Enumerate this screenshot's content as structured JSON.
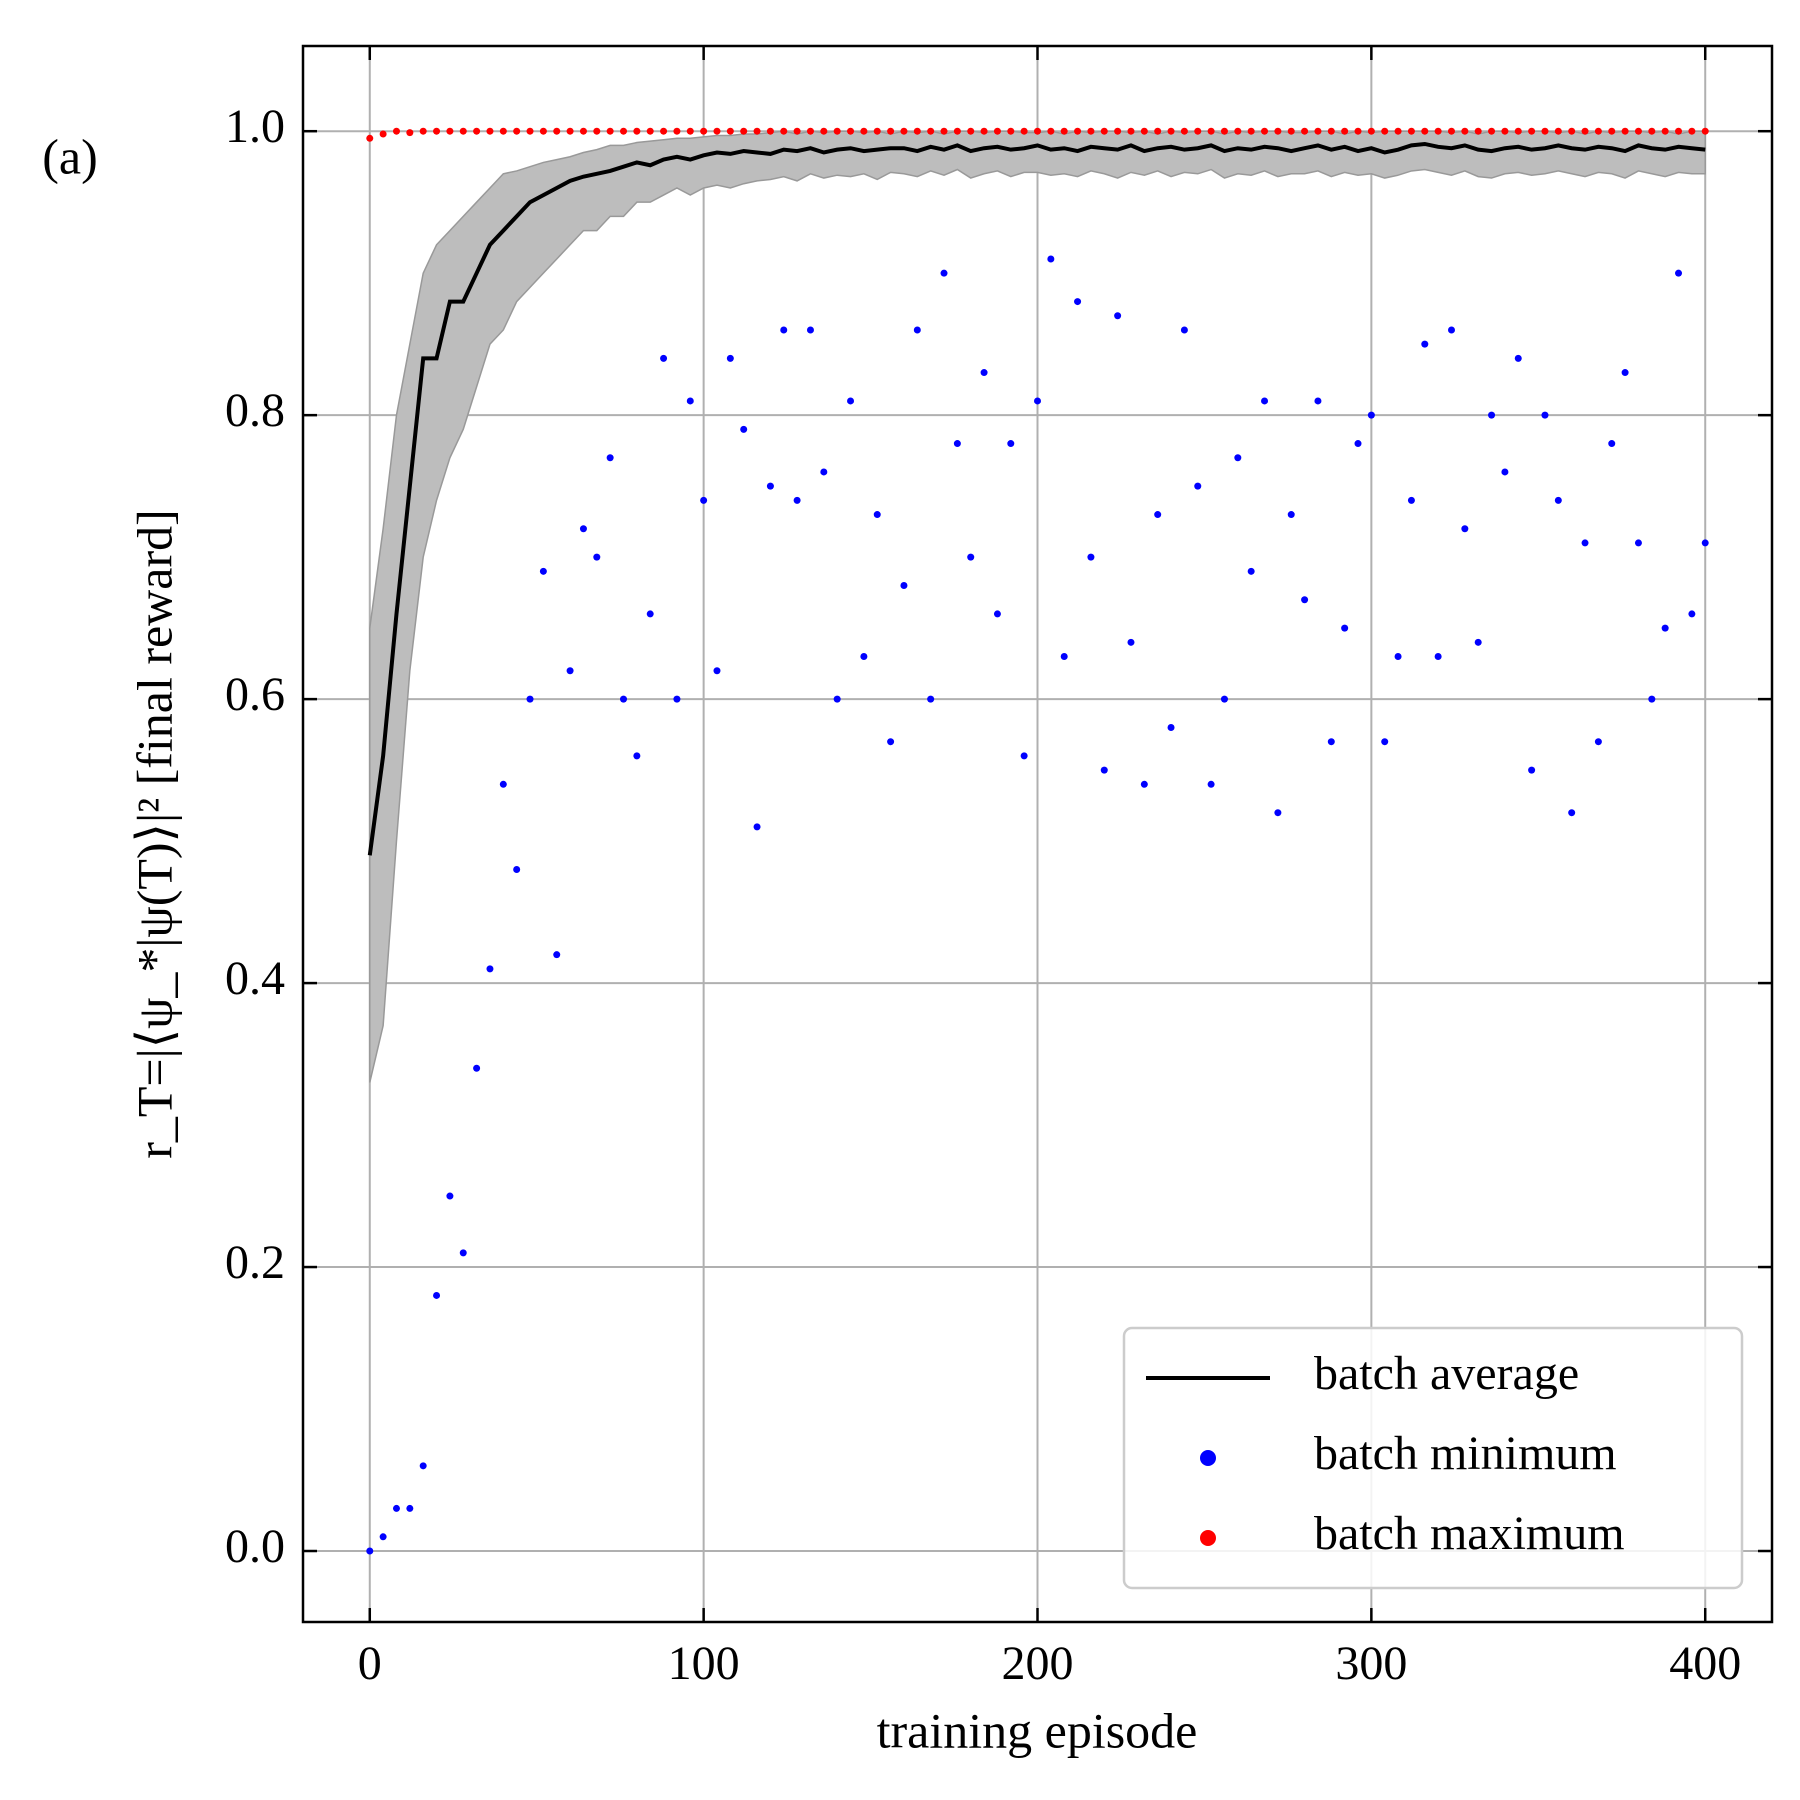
{
  "chart_data": {
    "type": "line",
    "panel_label": "(a)",
    "x_label": "training episode",
    "y_label": "r_T=|⟨ψ_*|ψ(T)⟩|² [final reward]",
    "xlim": [
      -20,
      420
    ],
    "ylim": [
      -0.05,
      1.06
    ],
    "xticks": [
      0,
      100,
      200,
      300,
      400
    ],
    "yticks": [
      {
        "value": 0,
        "label": "0.0"
      },
      0.2,
      0.4,
      0.6,
      0.8,
      {
        "value": 1,
        "label": "1.0"
      }
    ],
    "grid": true,
    "legend": "lower right",
    "x": [
      0,
      4,
      8,
      12,
      16,
      20,
      24,
      28,
      32,
      36,
      40,
      44,
      48,
      52,
      56,
      60,
      64,
      68,
      72,
      76,
      80,
      84,
      88,
      92,
      96,
      100,
      104,
      108,
      112,
      116,
      120,
      124,
      128,
      132,
      136,
      140,
      144,
      148,
      152,
      156,
      160,
      164,
      168,
      172,
      176,
      180,
      184,
      188,
      192,
      196,
      200,
      204,
      208,
      212,
      216,
      220,
      224,
      228,
      232,
      236,
      240,
      244,
      248,
      252,
      256,
      260,
      264,
      268,
      272,
      276,
      280,
      284,
      288,
      292,
      296,
      300,
      304,
      308,
      312,
      316,
      320,
      324,
      328,
      332,
      336,
      340,
      344,
      348,
      352,
      356,
      360,
      364,
      368,
      372,
      376,
      380,
      384,
      388,
      392,
      396,
      400
    ],
    "band": {
      "color": "#bdbdbd",
      "lower": [
        0.33,
        0.37,
        0.5,
        0.62,
        0.7,
        0.74,
        0.77,
        0.79,
        0.82,
        0.85,
        0.86,
        0.88,
        0.89,
        0.9,
        0.91,
        0.92,
        0.93,
        0.93,
        0.94,
        0.94,
        0.95,
        0.95,
        0.955,
        0.96,
        0.955,
        0.96,
        0.962,
        0.96,
        0.963,
        0.965,
        0.966,
        0.968,
        0.965,
        0.97,
        0.967,
        0.969,
        0.968,
        0.97,
        0.966,
        0.971,
        0.97,
        0.968,
        0.972,
        0.969,
        0.973,
        0.967,
        0.97,
        0.972,
        0.968,
        0.971,
        0.971,
        0.969,
        0.97,
        0.968,
        0.972,
        0.97,
        0.967,
        0.971,
        0.969,
        0.972,
        0.968,
        0.971,
        0.97,
        0.973,
        0.967,
        0.97,
        0.969,
        0.972,
        0.968,
        0.97,
        0.97,
        0.972,
        0.968,
        0.971,
        0.969,
        0.97,
        0.967,
        0.969,
        0.972,
        0.973,
        0.971,
        0.969,
        0.972,
        0.968,
        0.967,
        0.97,
        0.971,
        0.969,
        0.97,
        0.972,
        0.97,
        0.968,
        0.971,
        0.97,
        0.967,
        0.972,
        0.97,
        0.968,
        0.971,
        0.97,
        0.97
      ],
      "upper": [
        0.65,
        0.72,
        0.8,
        0.85,
        0.9,
        0.92,
        0.93,
        0.94,
        0.95,
        0.96,
        0.97,
        0.972,
        0.975,
        0.978,
        0.98,
        0.982,
        0.985,
        0.987,
        0.99,
        0.99,
        0.992,
        0.993,
        0.994,
        0.995,
        0.995,
        0.996,
        0.997,
        0.997,
        0.998,
        0.998,
        0.999,
        1.0,
        0.998,
        1.0,
        0.999,
        1.0,
        1.0,
        0.999,
        1.0,
        0.998,
        1.0,
        0.999,
        1.0,
        0.998,
        1.0,
        1.0,
        0.999,
        1.0,
        1.0,
        0.999,
        0.999,
        1.0,
        0.998,
        1.0,
        0.999,
        1.0,
        1.0,
        0.999,
        1.0,
        0.998,
        1.0,
        0.999,
        1.0,
        1.0,
        0.998,
        1.0,
        0.999,
        1.0,
        1.0,
        0.999,
        0.999,
        1.0,
        1.0,
        0.998,
        1.0,
        0.999,
        1.0,
        1.0,
        1.0,
        1.0,
        1.0,
        0.999,
        1.0,
        0.998,
        1.0,
        1.0,
        0.999,
        1.0,
        1.0,
        0.999,
        1.0,
        0.998,
        1.0,
        0.999,
        1.0,
        1.0,
        0.999,
        1.0,
        0.998,
        1.0,
        1.0
      ]
    },
    "series": [
      {
        "name": "batch average",
        "color": "#000000",
        "mode": "line",
        "values": [
          0.49,
          0.56,
          0.66,
          0.75,
          0.84,
          0.84,
          0.88,
          0.88,
          0.9,
          0.92,
          0.93,
          0.94,
          0.95,
          0.955,
          0.96,
          0.965,
          0.968,
          0.97,
          0.972,
          0.975,
          0.978,
          0.976,
          0.98,
          0.982,
          0.98,
          0.983,
          0.985,
          0.984,
          0.986,
          0.985,
          0.984,
          0.987,
          0.986,
          0.988,
          0.985,
          0.987,
          0.988,
          0.986,
          0.987,
          0.988,
          0.988,
          0.986,
          0.989,
          0.987,
          0.99,
          0.986,
          0.988,
          0.989,
          0.987,
          0.988,
          0.99,
          0.987,
          0.988,
          0.986,
          0.989,
          0.988,
          0.987,
          0.99,
          0.986,
          0.988,
          0.989,
          0.987,
          0.988,
          0.99,
          0.986,
          0.988,
          0.987,
          0.989,
          0.988,
          0.986,
          0.988,
          0.99,
          0.987,
          0.989,
          0.986,
          0.988,
          0.985,
          0.987,
          0.99,
          0.991,
          0.989,
          0.988,
          0.99,
          0.987,
          0.986,
          0.988,
          0.989,
          0.987,
          0.988,
          0.99,
          0.988,
          0.987,
          0.989,
          0.988,
          0.986,
          0.99,
          0.988,
          0.987,
          0.989,
          0.988,
          0.987
        ]
      },
      {
        "name": "batch minimum",
        "color": "#0000ff",
        "mode": "scatter",
        "values": [
          0.0,
          0.01,
          0.03,
          0.03,
          0.06,
          0.18,
          0.25,
          0.21,
          0.34,
          0.41,
          0.54,
          0.48,
          0.6,
          0.69,
          0.42,
          0.62,
          0.72,
          0.7,
          0.77,
          0.6,
          0.56,
          0.66,
          0.84,
          0.6,
          0.81,
          0.74,
          0.62,
          0.84,
          0.79,
          0.51,
          0.75,
          0.86,
          0.74,
          0.86,
          0.76,
          0.6,
          0.81,
          0.63,
          0.73,
          0.57,
          0.68,
          0.86,
          0.6,
          0.9,
          0.78,
          0.7,
          0.83,
          0.66,
          0.78,
          0.56,
          0.81,
          0.91,
          0.63,
          0.88,
          0.7,
          0.55,
          0.87,
          0.64,
          0.54,
          0.73,
          0.58,
          0.86,
          0.75,
          0.54,
          0.6,
          0.77,
          0.69,
          0.81,
          0.52,
          0.73,
          0.67,
          0.81,
          0.57,
          0.65,
          0.78,
          0.8,
          0.57,
          0.63,
          0.74,
          0.85,
          0.63,
          0.86,
          0.72,
          0.64,
          0.8,
          0.76,
          0.84,
          0.55,
          0.8,
          0.74,
          0.52,
          0.71,
          0.57,
          0.78,
          0.83,
          0.71,
          0.6,
          0.65,
          0.9,
          0.66,
          0.71
        ]
      },
      {
        "name": "batch maximum",
        "color": "#ff0000",
        "mode": "scatter",
        "values": [
          0.995,
          0.998,
          1,
          0.999,
          1,
          1,
          1,
          1,
          1,
          1,
          1,
          1,
          1,
          1,
          1,
          1,
          1,
          1,
          1,
          1,
          1,
          1,
          1,
          1,
          1,
          1,
          1,
          1,
          1,
          1,
          1,
          1,
          1,
          1,
          1,
          1,
          1,
          1,
          1,
          1,
          1,
          1,
          1,
          1,
          1,
          1,
          1,
          1,
          1,
          1,
          1,
          1,
          1,
          1,
          1,
          1,
          1,
          1,
          1,
          1,
          1,
          1,
          1,
          1,
          1,
          1,
          1,
          1,
          1,
          1,
          1,
          1,
          1,
          1,
          1,
          1,
          1,
          1,
          1,
          1,
          1,
          1,
          1,
          1,
          1,
          1,
          1,
          1,
          1,
          1,
          1,
          1,
          1,
          1,
          1,
          1,
          1,
          1,
          1,
          1,
          1
        ]
      }
    ]
  }
}
